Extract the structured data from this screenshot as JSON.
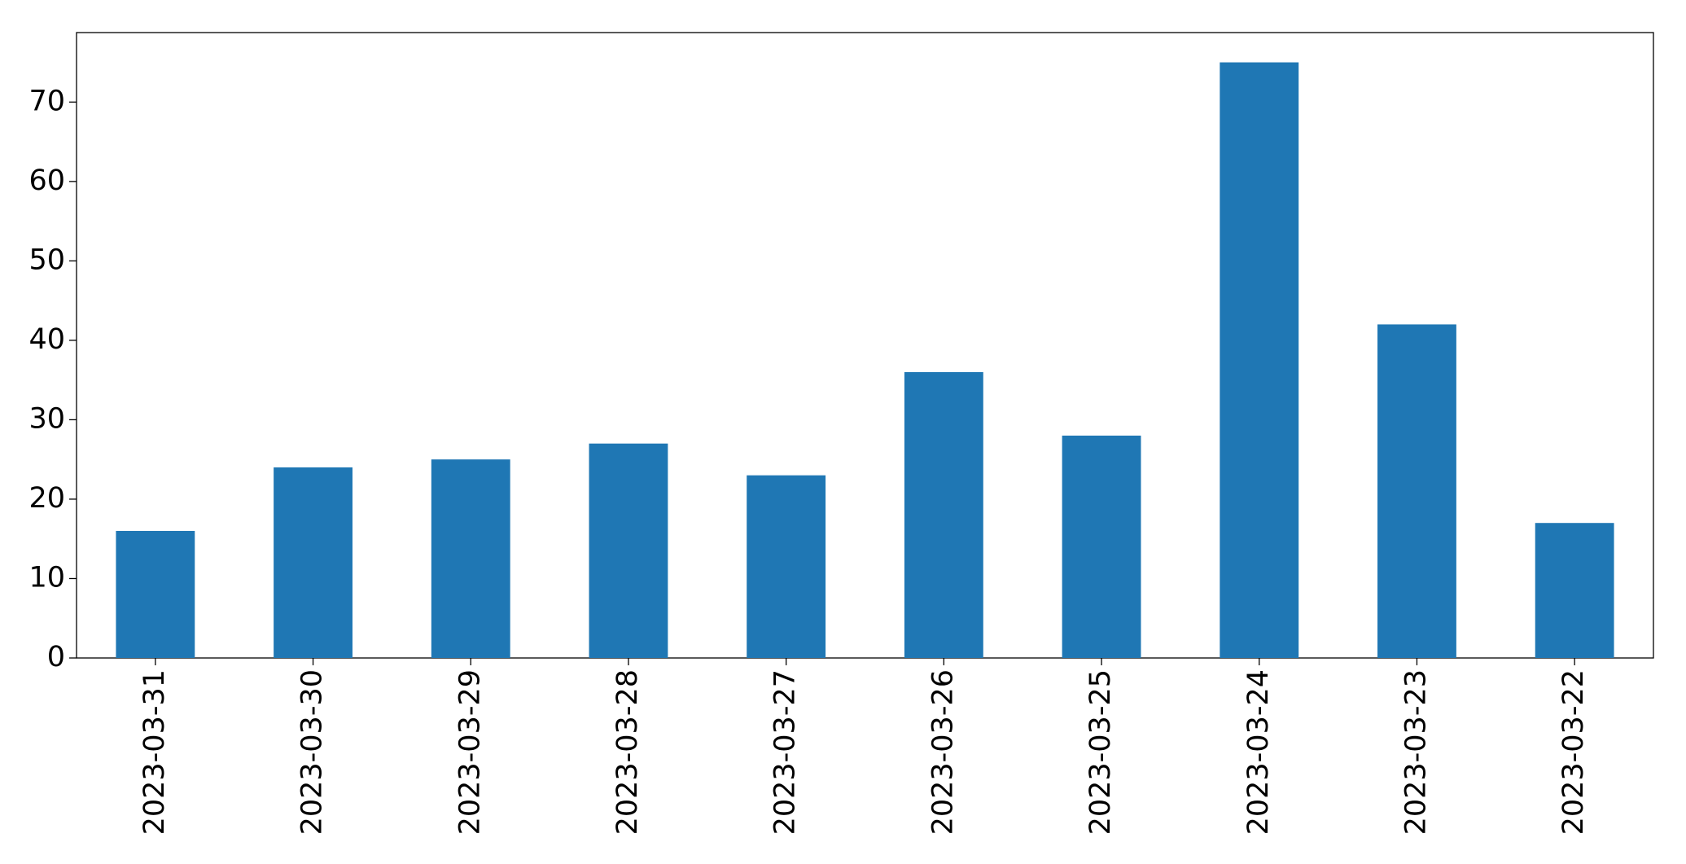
{
  "chart_data": {
    "type": "bar",
    "categories": [
      "2023-03-31",
      "2023-03-30",
      "2023-03-29",
      "2023-03-28",
      "2023-03-27",
      "2023-03-26",
      "2023-03-25",
      "2023-03-24",
      "2023-03-23",
      "2023-03-22"
    ],
    "values": [
      16,
      24,
      25,
      27,
      23,
      36,
      28,
      75,
      42,
      17
    ],
    "color": "#1f77b4",
    "ylim": [
      0,
      78.75
    ],
    "yticks": [
      0,
      10,
      20,
      30,
      40,
      50,
      60,
      70
    ],
    "grid": false
  }
}
